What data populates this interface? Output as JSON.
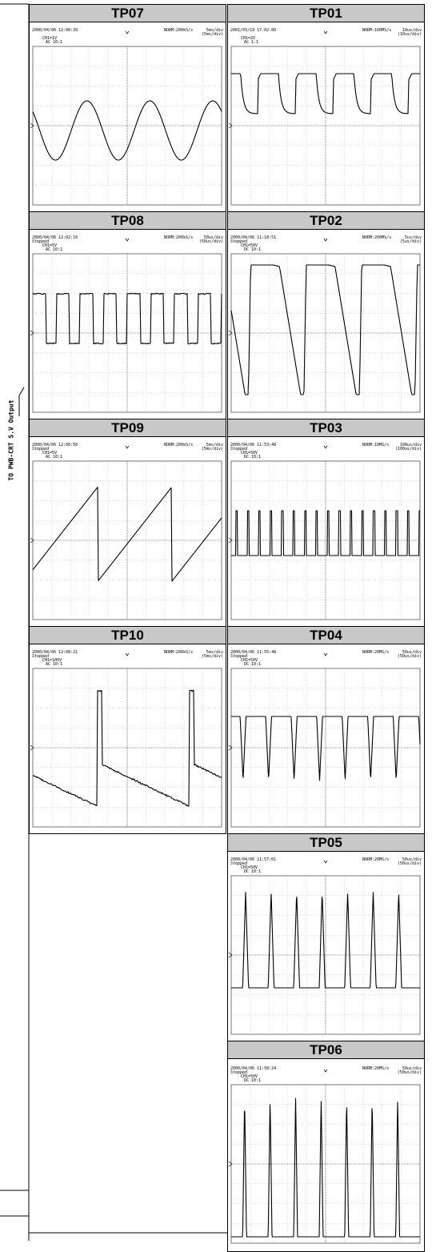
{
  "side_label": "TO PWB-CRT S.V Output",
  "panels": [
    {
      "id": "TP07",
      "date": "2000/04/06  12:00:39",
      "status": "",
      "norm": "NORM:200kS/s",
      "tdiv": "5ms/div",
      "tdiv2": "(5ms/div)",
      "ch": "CH1=1V",
      "coup": "AC  10:1",
      "wave": "sine"
    },
    {
      "id": "TP01",
      "date": "2001/03/19  17:02:00",
      "status": "",
      "norm": "NORM:100MS/s",
      "tdiv": "10us/div",
      "tdiv2": "(10us/div)",
      "ch": "CH1=2V",
      "coup": "AC  1:1",
      "wave": "dips"
    },
    {
      "id": "TP08",
      "date": "2000/04/06  12:02:10",
      "status": "Stopped",
      "norm": "NORM:200kS/s",
      "tdiv": "50us/div",
      "tdiv2": "(50us/div)",
      "ch": "CH1=5V",
      "coup": "AC  10:1",
      "wave": "square"
    },
    {
      "id": "TP02",
      "date": "2000/04/06  11:18:51",
      "status": "Stopped",
      "norm": "NORM:200MS/s",
      "tdiv": "5us/div",
      "tdiv2": "(5us/div)",
      "ch": "CH1=50V",
      "coup": "DC  10:1",
      "wave": "fall"
    },
    {
      "id": "TP09",
      "date": "2000/04/06  12:06:50",
      "status": "Stopped",
      "norm": "NORM:200kS/s",
      "tdiv": "5ms/div",
      "tdiv2": "(5ms/div)",
      "ch": "CH1=5V",
      "coup": "AC  10:1",
      "wave": "saw"
    },
    {
      "id": "TP03",
      "date": "2000/04/06  11:53:48",
      "status": "Stopped",
      "norm": "NORM:10MS/s",
      "tdiv": "100us/div",
      "tdiv2": "(100us/div)",
      "ch": "CH1=50V",
      "coup": "DC  10:1",
      "wave": "pulses"
    },
    {
      "id": "TP10",
      "date": "2000/04/06  12:08:21",
      "status": "Stopped",
      "norm": "NORM:200kS/s",
      "tdiv": "5ms/div",
      "tdiv2": "(5ms/div)",
      "ch": "CH1=100V",
      "coup": "AC  10:1",
      "wave": "spike"
    },
    {
      "id": "TP04",
      "date": "2000/04/06  11:55:48",
      "status": "Stopped",
      "norm": "NORM:20MS/s",
      "tdiv": "50us/div",
      "tdiv2": "(50us/div)",
      "ch": "CH1=50V",
      "coup": "DC  10:1",
      "wave": "vdips"
    },
    {
      "id": "TP05",
      "date": "2000/04/06  11:57:01",
      "status": "Stopped",
      "norm": "NORM:20MS/s",
      "tdiv": "50us/div",
      "tdiv2": "(50us/div)",
      "ch": "CH1=50V",
      "coup": "DC  10:1",
      "wave": "vspikes"
    },
    {
      "id": "TP06",
      "date": "2000/04/06  11:58:24",
      "status": "Stopped",
      "norm": "NORM:20MS/s",
      "tdiv": "50us/div",
      "tdiv2": "(50us/div)",
      "ch": "CH1=50V",
      "coup": "DC  10:1",
      "wave": "tallspikes"
    }
  ]
}
